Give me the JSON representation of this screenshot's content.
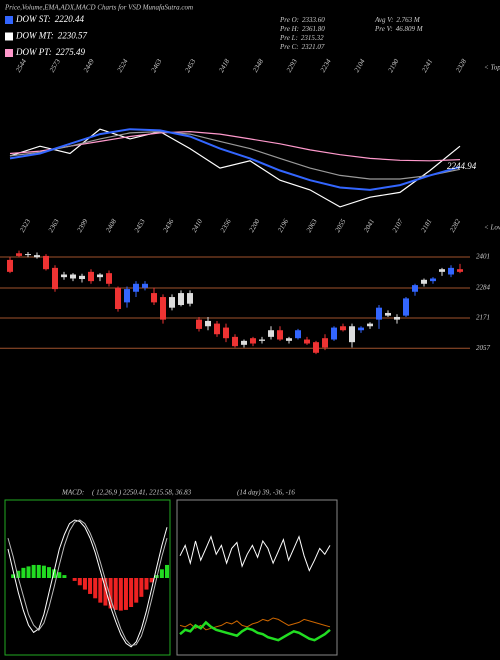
{
  "header": {
    "title": "Price,Volume,EMA,ADX,MACD Charts for VSD MunafaSutra.com",
    "legend": [
      {
        "label": "DOW ST:",
        "value": 2220.44,
        "color": "#3366ff"
      },
      {
        "label": "DOW MT:",
        "value": 2230.57,
        "color": "#ffffff"
      },
      {
        "label": "DOW PT:",
        "value": 2275.49,
        "color": "#ff99cc"
      }
    ],
    "stats": [
      {
        "label": "Pre O:",
        "value": "2333.60"
      },
      {
        "label": "Pre H:",
        "value": "2361.80"
      },
      {
        "label": "Pre L:",
        "value": "2315.32"
      },
      {
        "label": "Pre C:",
        "value": "2321.07"
      },
      {
        "label": "Avg V:",
        "value": "2.763 M"
      },
      {
        "label": "Pre V:",
        "value": "46.809 M"
      }
    ]
  },
  "chart_data": [
    {
      "type": "line",
      "ylim": [
        1985,
        2685
      ],
      "tops_caption": "< Tops",
      "lows_caption": "< Lows",
      "end_value": 2244.94,
      "top_labels": [
        "2544",
        "2573",
        "2449",
        "2524",
        "2463",
        "2453",
        "2418",
        "2348",
        "2293",
        "2234",
        "2104",
        "2190",
        "2241",
        "2328"
      ],
      "bottom_labels": [
        "2323",
        "2363",
        "2399",
        "2408",
        "2453",
        "2436",
        "2410",
        "2356",
        "2200",
        "2196",
        "2063",
        "2055",
        "2041",
        "2107",
        "2181",
        "2282"
      ],
      "series": [
        {
          "name": "Price",
          "color": "#ffffff",
          "values": [
            2290,
            2330,
            2300,
            2400,
            2360,
            2390,
            2320,
            2240,
            2270,
            2190,
            2150,
            2080,
            2120,
            2140,
            2230,
            2330
          ]
        },
        {
          "name": "DOW PT",
          "color": "#ff99cc",
          "values": [
            2300,
            2310,
            2330,
            2350,
            2370,
            2385,
            2390,
            2380,
            2360,
            2340,
            2315,
            2295,
            2280,
            2272,
            2270,
            2275
          ]
        },
        {
          "name": "DOW MT",
          "color": "#999999",
          "values": [
            2290,
            2305,
            2330,
            2360,
            2385,
            2390,
            2380,
            2350,
            2320,
            2280,
            2240,
            2210,
            2195,
            2195,
            2210,
            2235
          ]
        },
        {
          "name": "DOW ST",
          "color": "#3366ff",
          "values": [
            2280,
            2300,
            2340,
            2380,
            2400,
            2395,
            2370,
            2320,
            2280,
            2230,
            2190,
            2160,
            2150,
            2170,
            2210,
            2245
          ]
        }
      ]
    },
    {
      "type": "candlestick",
      "ylim": [
        1994,
        2465
      ],
      "yticks": [
        2401,
        2284,
        2171,
        2057
      ],
      "grid": true,
      "open": [
        2390,
        2415,
        2410,
        2408,
        2405,
        2360,
        2325,
        2320,
        2318,
        2345,
        2325,
        2340,
        2285,
        2230,
        2270,
        2285,
        2265,
        2250,
        2210,
        2220,
        2225,
        2165,
        2140,
        2150,
        2135,
        2100,
        2070,
        2095,
        2085,
        2100,
        2125,
        2085,
        2095,
        2090,
        2080,
        2095,
        2090,
        2140,
        2080,
        2125,
        2140,
        2165,
        2180,
        2165,
        2180,
        2270,
        2300,
        2310,
        2345,
        2335,
        2355
      ],
      "high": [
        2400,
        2425,
        2420,
        2418,
        2412,
        2370,
        2345,
        2340,
        2338,
        2355,
        2340,
        2350,
        2290,
        2290,
        2310,
        2310,
        2285,
        2260,
        2260,
        2275,
        2275,
        2175,
        2175,
        2160,
        2150,
        2110,
        2090,
        2100,
        2100,
        2140,
        2140,
        2100,
        2130,
        2100,
        2085,
        2110,
        2140,
        2150,
        2150,
        2140,
        2155,
        2220,
        2200,
        2185,
        2250,
        2300,
        2320,
        2325,
        2360,
        2370,
        2375
      ],
      "low": [
        2340,
        2400,
        2400,
        2395,
        2350,
        2270,
        2315,
        2310,
        2305,
        2300,
        2310,
        2290,
        2195,
        2210,
        2250,
        2275,
        2220,
        2150,
        2200,
        2215,
        2215,
        2120,
        2125,
        2100,
        2080,
        2060,
        2060,
        2065,
        2075,
        2090,
        2085,
        2075,
        2090,
        2070,
        2035,
        2050,
        2085,
        2120,
        2060,
        2115,
        2130,
        2130,
        2175,
        2150,
        2175,
        2255,
        2290,
        2300,
        2330,
        2325,
        2340
      ],
      "close": [
        2345,
        2405,
        2412,
        2400,
        2355,
        2280,
        2335,
        2335,
        2330,
        2310,
        2335,
        2300,
        2205,
        2280,
        2300,
        2300,
        2230,
        2165,
        2250,
        2265,
        2265,
        2130,
        2160,
        2110,
        2095,
        2065,
        2085,
        2075,
        2090,
        2125,
        2090,
        2095,
        2125,
        2075,
        2040,
        2060,
        2135,
        2125,
        2140,
        2135,
        2150,
        2210,
        2190,
        2175,
        2245,
        2295,
        2315,
        2320,
        2355,
        2360,
        2345
      ],
      "colors": [
        "#e33",
        "#e33",
        "#ddd",
        "#ddd",
        "#e33",
        "#e33",
        "#ddd",
        "#ddd",
        "#ddd",
        "#e33",
        "#ddd",
        "#e33",
        "#e33",
        "#3366ff",
        "#3366ff",
        "#3366ff",
        "#e33",
        "#e33",
        "#ddd",
        "#ddd",
        "#ddd",
        "#e33",
        "#ddd",
        "#e33",
        "#e33",
        "#e33",
        "#ddd",
        "#e33",
        "#ddd",
        "#ddd",
        "#e33",
        "#ddd",
        "#3366ff",
        "#e33",
        "#e33",
        "#e33",
        "#3366ff",
        "#e33",
        "#ddd",
        "#3366ff",
        "#ddd",
        "#3366ff",
        "#ddd",
        "#ddd",
        "#3366ff",
        "#3366ff",
        "#ddd",
        "#3366ff",
        "#ddd",
        "#3366ff",
        "#e33"
      ]
    },
    {
      "type": "macd",
      "title": "MACD:",
      "subtitle": "( 12,26,9 ) 2250.41, 2215.58, 36.83",
      "ylim": [
        -100,
        100
      ],
      "histogram": [
        0,
        5,
        10,
        14,
        16,
        18,
        18,
        17,
        15,
        12,
        8,
        4,
        0,
        -4,
        -10,
        -16,
        -22,
        -28,
        -34,
        -38,
        -42,
        -44,
        -45,
        -44,
        -40,
        -34,
        -26,
        -16,
        -6,
        4,
        12,
        18
      ],
      "series": [
        {
          "name": "MACD",
          "color": "#ffffff",
          "values": [
            40,
            10,
            -20,
            -45,
            -65,
            -75,
            -70,
            -50,
            -20,
            10,
            40,
            60,
            75,
            80,
            78,
            70,
            55,
            35,
            10,
            -15,
            -40,
            -60,
            -78,
            -90,
            -95,
            -88,
            -70,
            -45,
            -15,
            15,
            45,
            70
          ]
        },
        {
          "name": "Signal",
          "color": "#bbbbbb",
          "values": [
            55,
            30,
            0,
            -25,
            -50,
            -65,
            -72,
            -62,
            -40,
            -12,
            18,
            45,
            65,
            77,
            80,
            75,
            62,
            45,
            22,
            -3,
            -28,
            -50,
            -70,
            -85,
            -93,
            -92,
            -80,
            -58,
            -30,
            0,
            30,
            55
          ]
        }
      ]
    },
    {
      "type": "adx",
      "subtitle": "(14 day) 39, -36, -16",
      "ylim": [
        0,
        100
      ],
      "series": [
        {
          "name": "+DI",
          "color": "#ffffff",
          "values": [
            65,
            72,
            60,
            75,
            62,
            70,
            78,
            66,
            72,
            60,
            70,
            74,
            58,
            66,
            72,
            64,
            75,
            70,
            60,
            68,
            76,
            62,
            70,
            78,
            65,
            55,
            62,
            70,
            66,
            72
          ]
        },
        {
          "name": "-DI",
          "color": "#cc6600",
          "values": [
            18,
            17,
            19,
            16,
            18,
            15,
            16,
            17,
            18,
            20,
            19,
            21,
            18,
            17,
            19,
            20,
            22,
            21,
            23,
            22,
            20,
            18,
            19,
            20,
            22,
            21,
            20,
            19,
            18,
            17
          ]
        },
        {
          "name": "ADX",
          "color": "#22dd22",
          "values": [
            12,
            15,
            14,
            18,
            16,
            20,
            17,
            15,
            14,
            13,
            12,
            11,
            14,
            16,
            15,
            13,
            12,
            10,
            9,
            8,
            10,
            12,
            14,
            13,
            11,
            9,
            8,
            10,
            12,
            15
          ]
        }
      ]
    }
  ]
}
